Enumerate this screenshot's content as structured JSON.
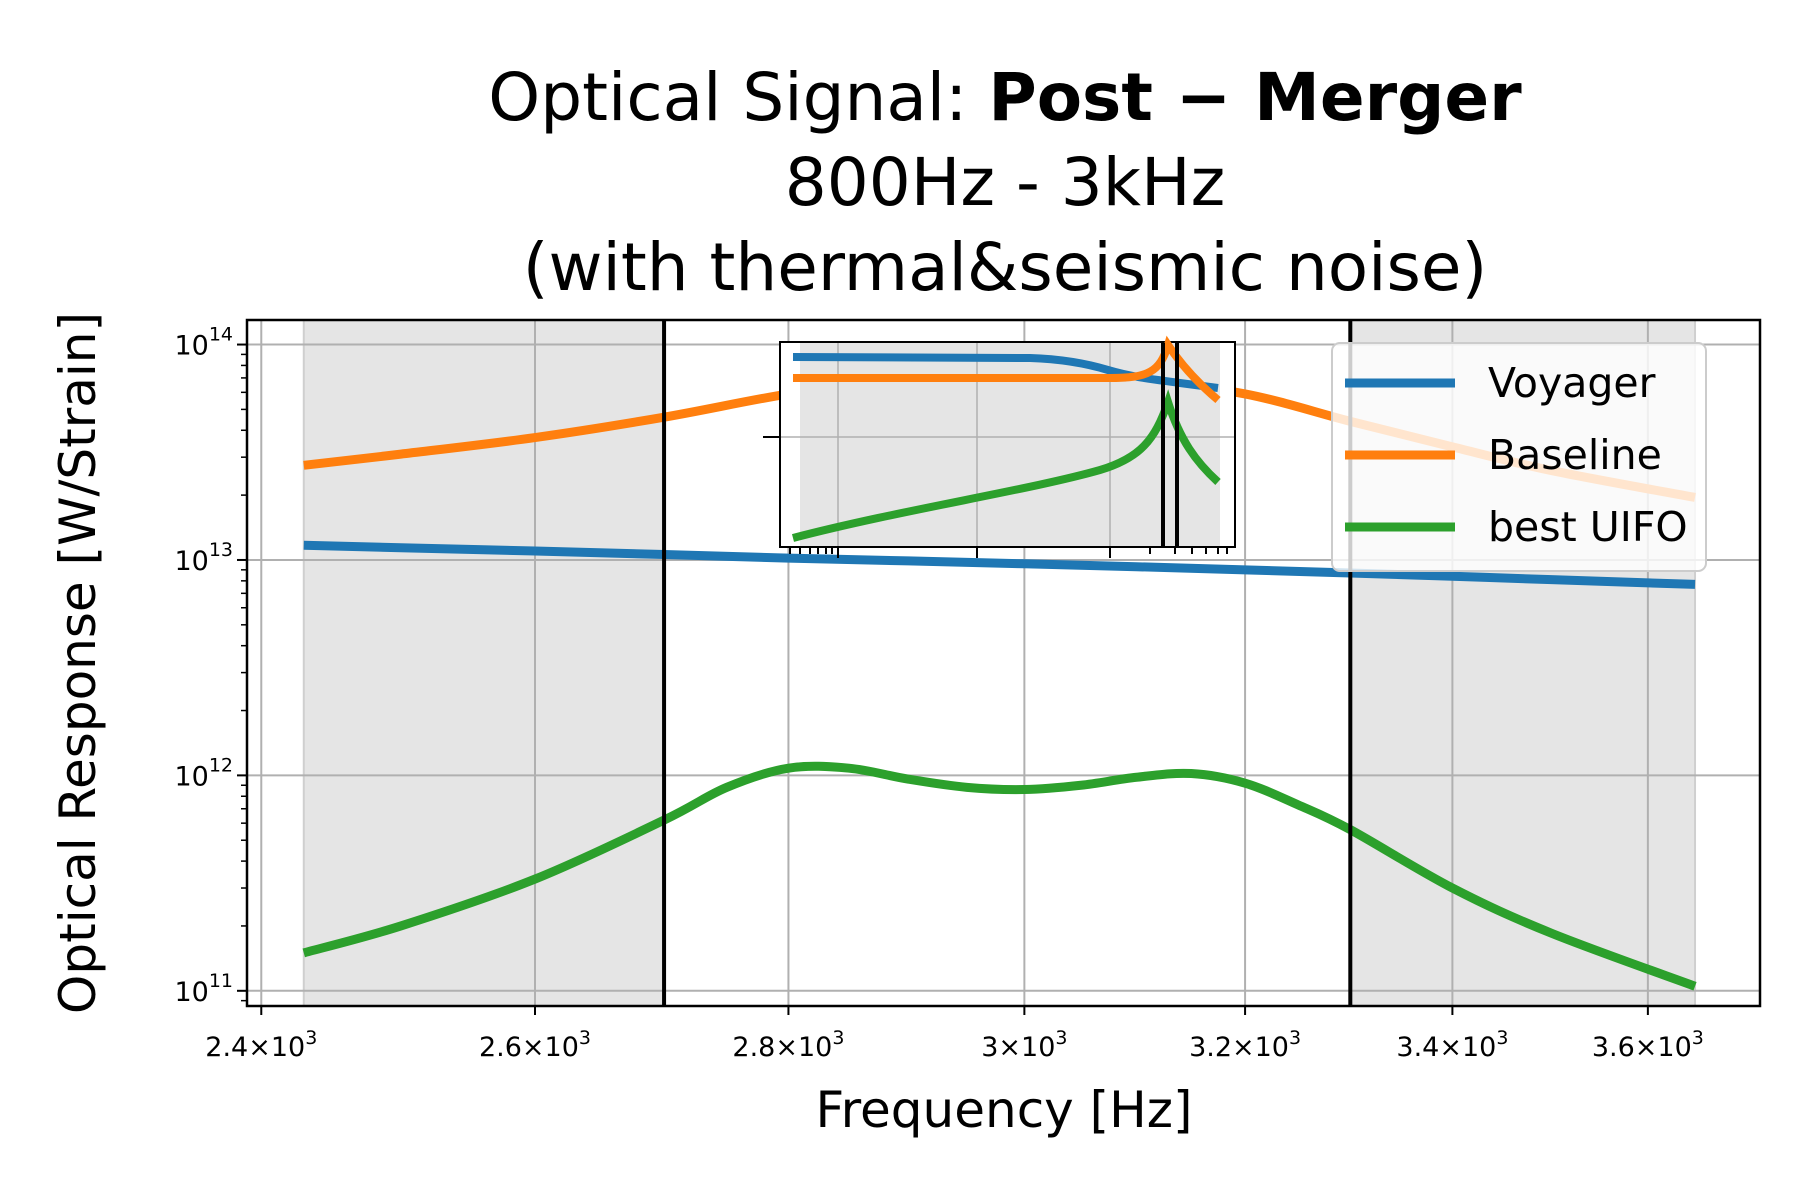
{
  "title": {
    "line1_normal": "Optical Signal: ",
    "line1_bold": "Post − Merger",
    "line2": "800Hz - 3kHz",
    "line3": "(with thermal&seismic noise)"
  },
  "chart_data": {
    "type": "line",
    "xlabel": "Frequency [Hz]",
    "ylabel": "Optical Response [W/Strain]",
    "x_scale": "log",
    "y_scale": "log",
    "xlim": [
      2390,
      3720
    ],
    "ylim": [
      85000000000.0,
      130000000000000.0
    ],
    "x_ticks": [
      {
        "value": 2400,
        "mantissa": "2.4",
        "exponent": "3"
      },
      {
        "value": 2600,
        "mantissa": "2.6",
        "exponent": "3"
      },
      {
        "value": 2800,
        "mantissa": "2.8",
        "exponent": "3"
      },
      {
        "value": 3000,
        "mantissa": "3",
        "exponent": "3"
      },
      {
        "value": 3200,
        "mantissa": "3.2",
        "exponent": "3"
      },
      {
        "value": 3400,
        "mantissa": "3.4",
        "exponent": "3"
      },
      {
        "value": 3600,
        "mantissa": "3.6",
        "exponent": "3"
      }
    ],
    "y_ticks": [
      {
        "value": 100000000000.0,
        "base": "10",
        "exponent": "11"
      },
      {
        "value": 1000000000000.0,
        "base": "10",
        "exponent": "12"
      },
      {
        "value": 10000000000000.0,
        "base": "10",
        "exponent": "13"
      },
      {
        "value": 100000000000000.0,
        "base": "10",
        "exponent": "14"
      }
    ],
    "grid": true,
    "legend_position": "upper-right",
    "shaded_regions": [
      [
        2430,
        2700
      ],
      [
        3300,
        3650
      ]
    ],
    "vertical_lines": [
      2700,
      3300
    ],
    "series": [
      {
        "name": "Voyager",
        "color": "#1f77b4",
        "x": [
          2430,
          2500,
          2600,
          2700,
          2800,
          2900,
          3000,
          3100,
          3200,
          3300,
          3400,
          3500,
          3650
        ],
        "y": [
          11700000000000.0,
          11400000000000.0,
          11000000000000.0,
          10600000000000.0,
          10200000000000.0,
          9900000000000.0,
          9600000000000.0,
          9300000000000.0,
          9000000000000.0,
          8700000000000.0,
          8400000000000.0,
          8100000000000.0,
          7700000000000.0
        ]
      },
      {
        "name": "Baseline",
        "color": "#ff7f0e",
        "x": [
          2430,
          2500,
          2600,
          2700,
          2800,
          2900,
          3000,
          3100,
          3200,
          3300,
          3400,
          3500,
          3650
        ],
        "y": [
          27500000000000.0,
          31000000000000.0,
          37000000000000.0,
          46000000000000.0,
          59000000000000.0,
          70000000000000.0,
          72000000000000.0,
          68000000000000.0,
          59000000000000.0,
          44000000000000.0,
          33500000000000.0,
          26000000000000.0,
          19500000000000.0
        ]
      },
      {
        "name": "best UIFO",
        "color": "#2ca02c",
        "x": [
          2430,
          2500,
          2600,
          2700,
          2750,
          2800,
          2850,
          2900,
          2950,
          3000,
          3050,
          3100,
          3150,
          3200,
          3250,
          3300,
          3400,
          3500,
          3650
        ],
        "y": [
          150000000000.0,
          200000000000.0,
          330000000000.0,
          620000000000.0,
          880000000000.0,
          1080000000000.0,
          1080000000000.0,
          960000000000.0,
          880000000000.0,
          860000000000.0,
          900000000000.0,
          980000000000.0,
          1020000000000.0,
          920000000000.0,
          730000000000.0,
          560000000000.0,
          300000000000.0,
          185000000000.0,
          105000000000.0
        ]
      }
    ]
  },
  "inset_chart": {
    "type": "line",
    "x_scale": "log",
    "y_scale": "log",
    "grid": true,
    "vertical_lines": [
      "peak-left",
      "peak-right"
    ],
    "series": [
      {
        "name": "Voyager",
        "color": "#1f77b4"
      },
      {
        "name": "Baseline",
        "color": "#ff7f0e"
      },
      {
        "name": "best UIFO",
        "color": "#2ca02c"
      }
    ]
  }
}
